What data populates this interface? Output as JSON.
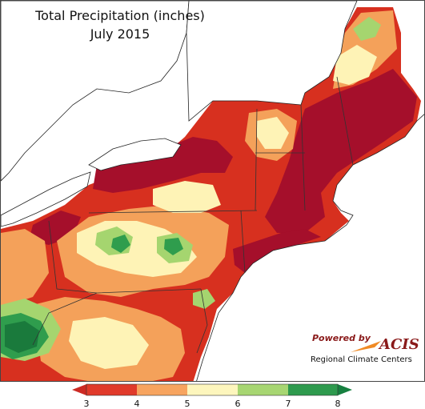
{
  "title": "Total Precipitation (inches)",
  "subtitle": "July 2015",
  "credit": {
    "powered_by": "Powered by",
    "brand": "ACIS",
    "org": "Regional Climate Centers"
  },
  "legend": {
    "ticks": [
      "3",
      "4",
      "5",
      "6",
      "7",
      "8"
    ],
    "colors": {
      "below": "#cc2a24",
      "c3_4": "#e03a2a",
      "c4_5": "#f7a45f",
      "c5_6": "#fdf6bd",
      "c6_7": "#a7d672",
      "c7_8": "#2e9a4e",
      "above": "#178040"
    }
  },
  "map_colors": {
    "lake": "#ffffff",
    "deep_red": "#a50f2b",
    "red": "#d7301f",
    "orange": "#f4a15a",
    "yellow": "#fef3b6",
    "light_green": "#a5d56f",
    "green": "#2f9d4d",
    "dark_green": "#1a7a3c",
    "ocean": "#ffffff"
  }
}
